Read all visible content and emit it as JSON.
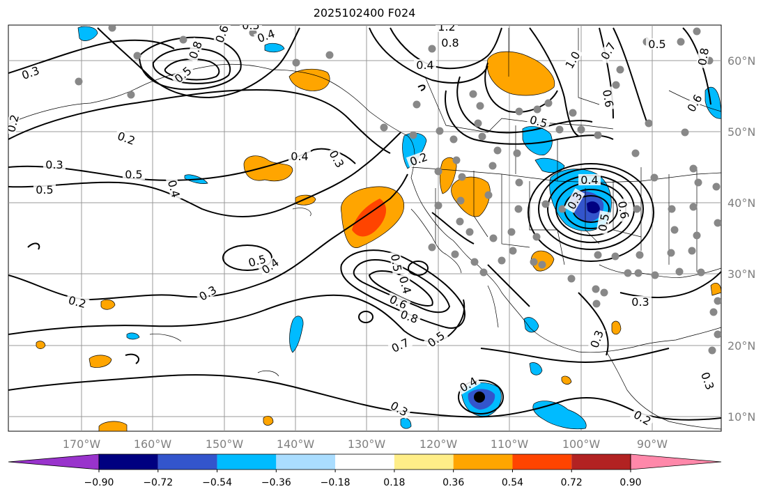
{
  "title": "2025102400 F024",
  "lon_ticks": [
    "170°W",
    "160°W",
    "150°W",
    "140°W",
    "130°W",
    "120°W",
    "110°W",
    "100°W",
    "90°W"
  ],
  "lat_ticks": [
    "60°N",
    "50°N",
    "40°N",
    "30°N",
    "20°N",
    "10°N"
  ],
  "colorbar": {
    "colors": [
      "#9933cc",
      "#000080",
      "#3355cc",
      "#00bbff",
      "#aaddff",
      "#ffffff",
      "#ffee88",
      "#ffa500",
      "#ff4400",
      "#b22222",
      "#ff88aa"
    ],
    "tick_labels": [
      "−0.90",
      "−0.72",
      "−0.54",
      "−0.36",
      "−0.18",
      "0.18",
      "0.36",
      "0.54",
      "0.72",
      "0.90"
    ]
  },
  "contour_labels": [
    "0.3",
    "0.2",
    "0.2",
    "0.3",
    "0.5",
    "0.4",
    "0.5",
    "0.5",
    "0.6",
    "0.8",
    "0.4",
    "0.5",
    "0.4",
    "0.3",
    "0.5",
    "0.4",
    "0.3",
    "1.2",
    "0.8",
    "0.4",
    "1.0",
    "0.7",
    "0.5",
    "0.6",
    "0.8",
    "0.6",
    "0.5",
    "0.2",
    "0.4",
    "0.5",
    "0.6",
    "0.8",
    "0.7",
    "0.5",
    "0.4",
    "0.3",
    "0.2",
    "0.3",
    "0.3",
    "0.3",
    "0.2",
    "0.3",
    "0.4",
    "0.6",
    "0.5"
  ],
  "map_colors": {
    "orange": "#ffa500",
    "red": "#ff4400",
    "lightblue": "#00bbff",
    "blue": "#3355cc",
    "navy": "#000080",
    "station": "#888888",
    "grid": "#999999"
  }
}
